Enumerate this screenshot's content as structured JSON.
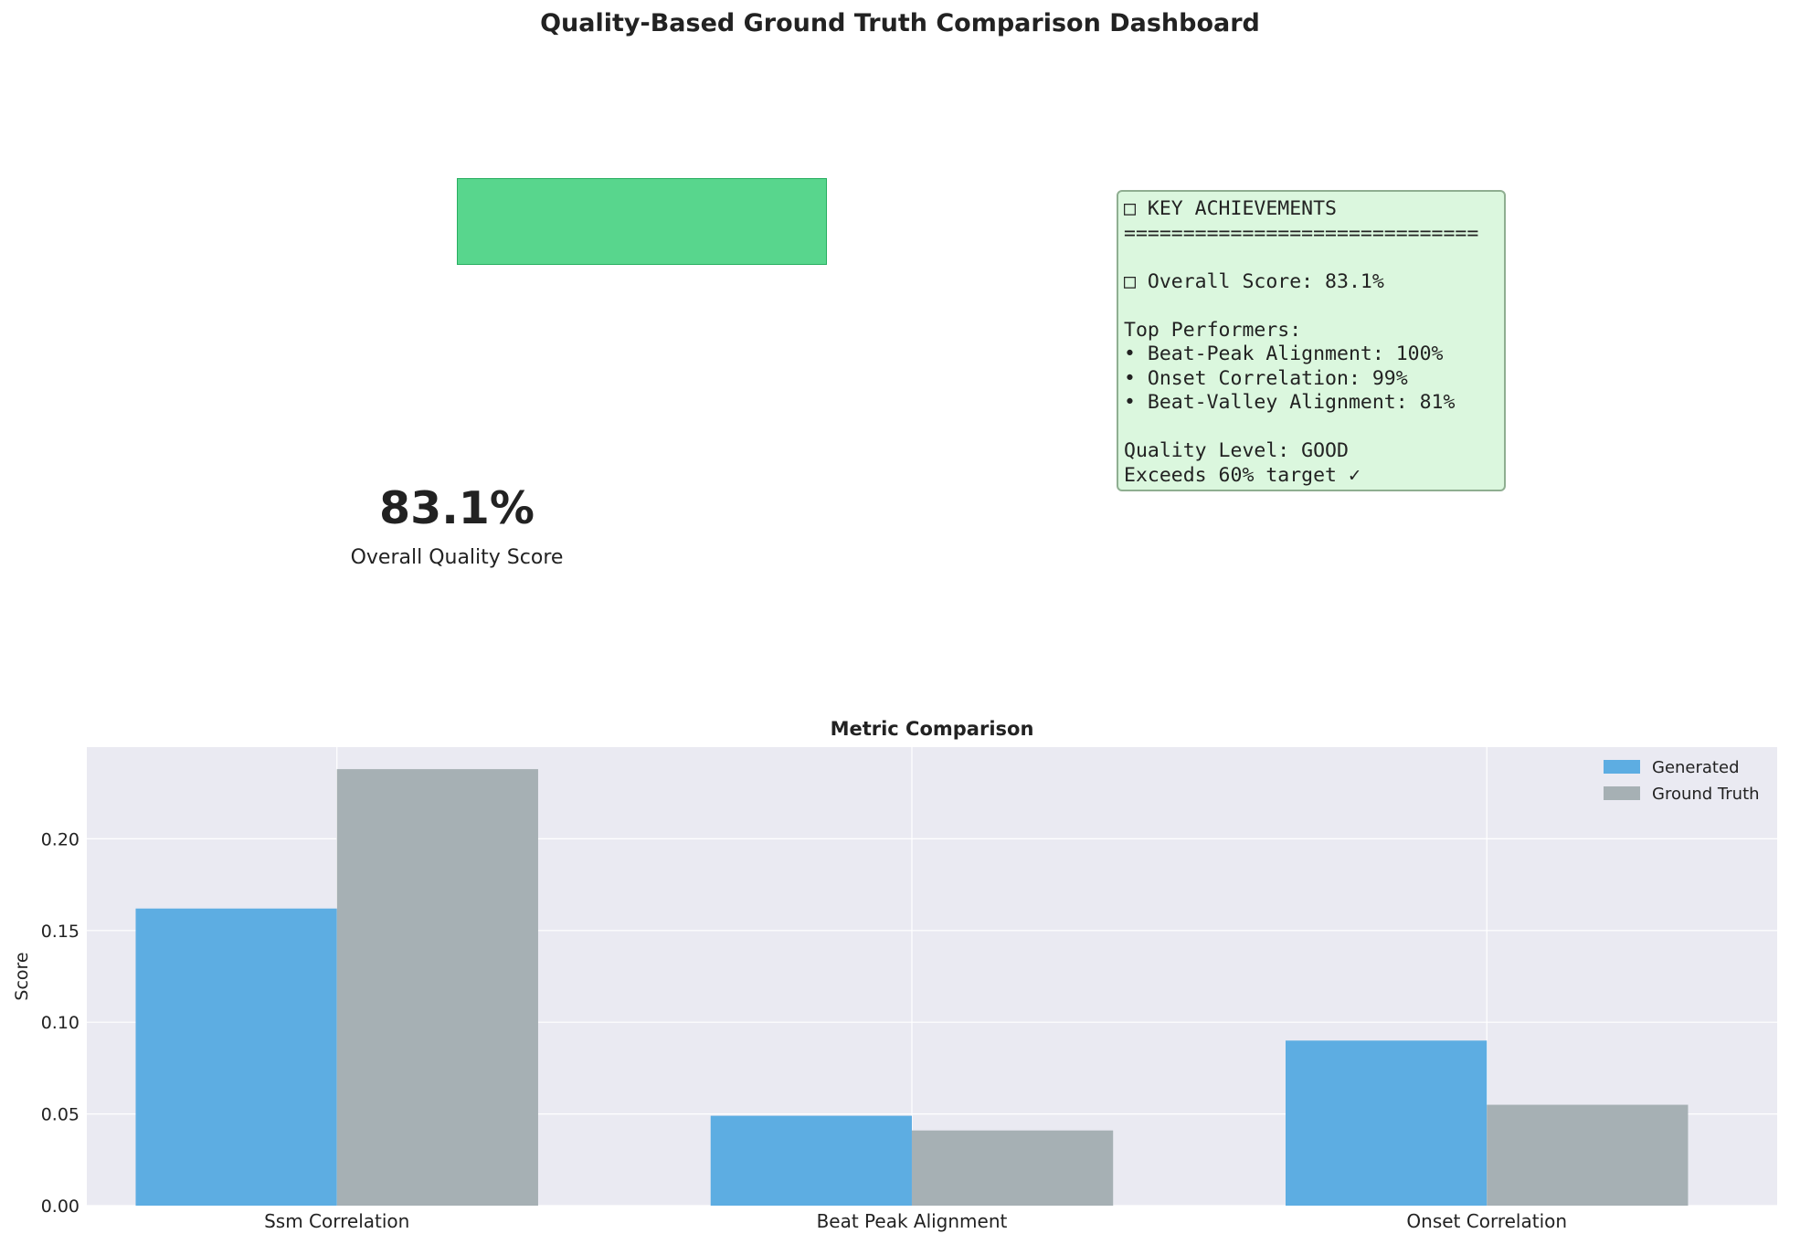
{
  "dashboard": {
    "title": "Quality-Based Ground Truth Comparison Dashboard",
    "gauge": {
      "fill_percent": 83.1,
      "color": "#58d68d"
    },
    "score_value": "83.1%",
    "score_label": "Overall Quality Score"
  },
  "achievements": {
    "lines": [
      "□ KEY ACHIEVEMENTS",
      "==============================",
      "",
      "□ Overall Score: 83.1%",
      "",
      "Top Performers:",
      "• Beat-Peak Alignment: 100%",
      "• Onset Correlation: 99%",
      "• Beat-Valley Alignment: 81%",
      "",
      "Quality Level: GOOD",
      "Exceeds 60% target ✓"
    ]
  },
  "chart_data": {
    "type": "bar",
    "title": "Metric Comparison",
    "xlabel": "",
    "ylabel": "Score",
    "categories": [
      "Ssm Correlation",
      "Beat Peak Alignment",
      "Onset Correlation"
    ],
    "series": [
      {
        "name": "Generated",
        "values": [
          0.162,
          0.049,
          0.09
        ],
        "color": "#5dade2"
      },
      {
        "name": "Ground Truth",
        "values": [
          0.238,
          0.041,
          0.055
        ],
        "color": "#a6b0b4"
      }
    ],
    "ylim": [
      0,
      0.25
    ],
    "yticks": [
      "0.00",
      "0.05",
      "0.10",
      "0.15",
      "0.20"
    ],
    "grid": true,
    "legend": "top-right"
  }
}
